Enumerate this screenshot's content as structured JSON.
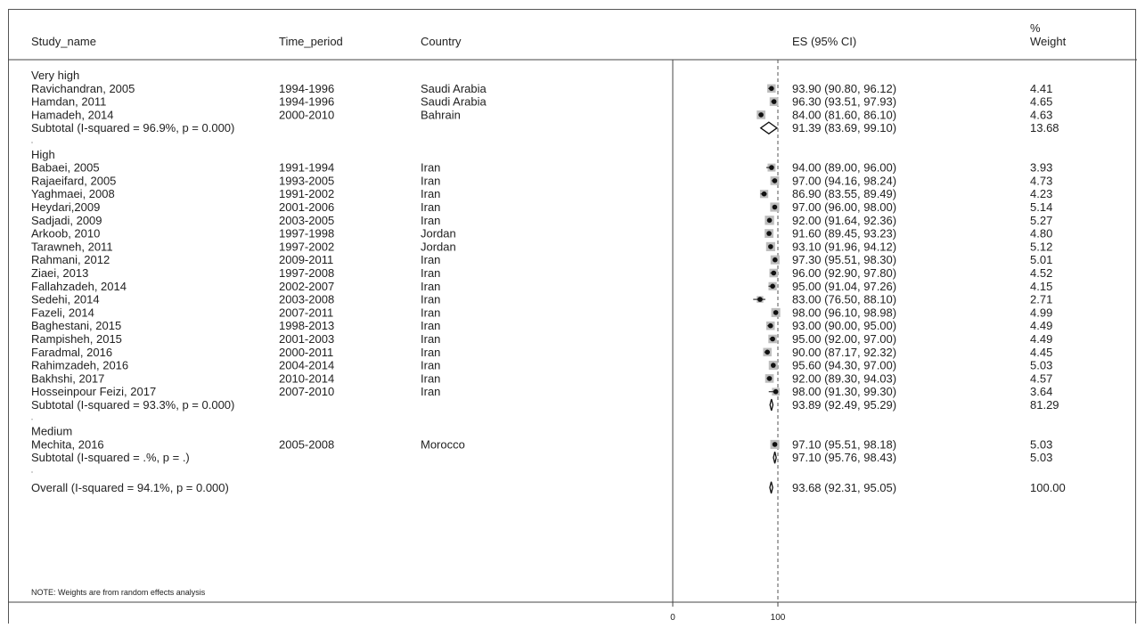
{
  "chart_data": {
    "type": "forest",
    "columns": {
      "study": "Study_name",
      "period": "Time_period",
      "country": "Country",
      "es": "ES (95% CI)",
      "weight_top": "%",
      "weight_bottom": "Weight"
    },
    "axis": {
      "ticks": [
        0,
        100
      ],
      "tick_labels": [
        "0",
        "100"
      ],
      "xlim": [
        0,
        100
      ],
      "reference_line": 100
    },
    "note": "NOTE: Weights are from random effects analysis",
    "groups": [
      {
        "name": "Very high",
        "studies": [
          {
            "study": "Ravichandran, 2005",
            "period": "1994-1996",
            "country": "Saudi Arabia",
            "es": 93.9,
            "lo": 90.8,
            "hi": 96.12,
            "es_text": "93.90 (90.80, 96.12)",
            "weight": "4.41"
          },
          {
            "study": "Hamdan, 2011",
            "period": "1994-1996",
            "country": "Saudi Arabia",
            "es": 96.3,
            "lo": 93.51,
            "hi": 97.93,
            "es_text": "96.30 (93.51, 97.93)",
            "weight": "4.65"
          },
          {
            "study": "Hamadeh, 2014",
            "period": "2000-2010",
            "country": "Bahrain",
            "es": 84.0,
            "lo": 81.6,
            "hi": 86.1,
            "es_text": "84.00 (81.60, 86.10)",
            "weight": "4.63"
          }
        ],
        "subtotal": {
          "label": "Subtotal  (I-squared = 96.9%, p = 0.000)",
          "es": 91.39,
          "lo": 83.69,
          "hi": 99.1,
          "es_text": "91.39 (83.69, 99.10)",
          "weight": "13.68"
        }
      },
      {
        "name": "High",
        "studies": [
          {
            "study": "Babaei, 2005",
            "period": "1991-1994",
            "country": "Iran",
            "es": 94.0,
            "lo": 89.0,
            "hi": 96.0,
            "es_text": "94.00 (89.00, 96.00)",
            "weight": "3.93"
          },
          {
            "study": "Rajaeifard, 2005",
            "period": "1993-2005",
            "country": "Iran",
            "es": 97.0,
            "lo": 94.16,
            "hi": 98.24,
            "es_text": "97.00 (94.16, 98.24)",
            "weight": "4.73"
          },
          {
            "study": "Yaghmaei, 2008",
            "period": "1991-2002",
            "country": "Iran",
            "es": 86.9,
            "lo": 83.55,
            "hi": 89.49,
            "es_text": "86.90 (83.55, 89.49)",
            "weight": "4.23"
          },
          {
            "study": "Heydari,2009",
            "period": "2001-2006",
            "country": "Iran",
            "es": 97.0,
            "lo": 96.0,
            "hi": 98.0,
            "es_text": "97.00 (96.00, 98.00)",
            "weight": "5.14"
          },
          {
            "study": "Sadjadi, 2009",
            "period": "2003-2005",
            "country": "Iran",
            "es": 92.0,
            "lo": 91.64,
            "hi": 92.36,
            "es_text": "92.00 (91.64, 92.36)",
            "weight": "5.27"
          },
          {
            "study": "Arkoob, 2010",
            "period": "1997-1998",
            "country": "Jordan",
            "es": 91.6,
            "lo": 89.45,
            "hi": 93.23,
            "es_text": "91.60 (89.45, 93.23)",
            "weight": "4.80"
          },
          {
            "study": "Tarawneh, 2011",
            "period": "1997-2002",
            "country": "Jordan",
            "es": 93.1,
            "lo": 91.96,
            "hi": 94.12,
            "es_text": "93.10 (91.96, 94.12)",
            "weight": "5.12"
          },
          {
            "study": "Rahmani, 2012",
            "period": "2009-2011",
            "country": "Iran",
            "es": 97.3,
            "lo": 95.51,
            "hi": 98.3,
            "es_text": "97.30 (95.51, 98.30)",
            "weight": "5.01"
          },
          {
            "study": "Ziaei, 2013",
            "period": "1997-2008",
            "country": "Iran",
            "es": 96.0,
            "lo": 92.9,
            "hi": 97.8,
            "es_text": "96.00 (92.90, 97.80)",
            "weight": "4.52"
          },
          {
            "study": "Fallahzadeh, 2014",
            "period": "2002-2007",
            "country": "Iran",
            "es": 95.0,
            "lo": 91.04,
            "hi": 97.26,
            "es_text": "95.00 (91.04, 97.26)",
            "weight": "4.15"
          },
          {
            "study": "Sedehi, 2014",
            "period": "2003-2008",
            "country": "Iran",
            "es": 83.0,
            "lo": 76.5,
            "hi": 88.1,
            "es_text": "83.00 (76.50, 88.10)",
            "weight": "2.71"
          },
          {
            "study": "Fazeli, 2014",
            "period": "2007-2011",
            "country": "Iran",
            "es": 98.0,
            "lo": 96.1,
            "hi": 98.98,
            "es_text": "98.00 (96.10, 98.98)",
            "weight": "4.99"
          },
          {
            "study": "Baghestani, 2015",
            "period": "1998-2013",
            "country": "Iran",
            "es": 93.0,
            "lo": 90.0,
            "hi": 95.0,
            "es_text": "93.00 (90.00, 95.00)",
            "weight": "4.49"
          },
          {
            "study": "Rampisheh, 2015",
            "period": "2001-2003",
            "country": "Iran",
            "es": 95.0,
            "lo": 92.0,
            "hi": 97.0,
            "es_text": "95.00 (92.00, 97.00)",
            "weight": "4.49"
          },
          {
            "study": "Faradmal, 2016",
            "period": "2000-2011",
            "country": "Iran",
            "es": 90.0,
            "lo": 87.17,
            "hi": 92.32,
            "es_text": "90.00 (87.17, 92.32)",
            "weight": "4.45"
          },
          {
            "study": "Rahimzadeh, 2016",
            "period": "2004-2014",
            "country": "Iran",
            "es": 95.6,
            "lo": 94.3,
            "hi": 97.0,
            "es_text": "95.60 (94.30, 97.00)",
            "weight": "5.03"
          },
          {
            "study": "Bakhshi, 2017",
            "period": "2010-2014",
            "country": "Iran",
            "es": 92.0,
            "lo": 89.3,
            "hi": 94.03,
            "es_text": "92.00 (89.30, 94.03)",
            "weight": "4.57"
          },
          {
            "study": "Hosseinpour Feizi, 2017",
            "period": "2007-2010",
            "country": "Iran",
            "es": 98.0,
            "lo": 91.3,
            "hi": 99.3,
            "es_text": "98.00 (91.30, 99.30)",
            "weight": "3.64"
          }
        ],
        "subtotal": {
          "label": "Subtotal  (I-squared = 93.3%, p = 0.000)",
          "es": 93.89,
          "lo": 92.49,
          "hi": 95.29,
          "es_text": "93.89 (92.49, 95.29)",
          "weight": "81.29"
        }
      },
      {
        "name": "Medium",
        "studies": [
          {
            "study": "Mechita, 2016",
            "period": "2005-2008",
            "country": "Morocco",
            "es": 97.1,
            "lo": 95.51,
            "hi": 98.18,
            "es_text": "97.10 (95.51, 98.18)",
            "weight": "5.03"
          }
        ],
        "subtotal": {
          "label": "Subtotal  (I-squared = .%, p = .)",
          "es": 97.1,
          "lo": 95.76,
          "hi": 98.43,
          "es_text": "97.10 (95.76, 98.43)",
          "weight": "5.03"
        }
      }
    ],
    "overall": {
      "label": "Overall  (I-squared = 94.1%, p = 0.000)",
      "es": 93.68,
      "lo": 92.31,
      "hi": 95.05,
      "es_text": "93.68 (92.31, 95.05)",
      "weight": "100.00"
    },
    "colors": {
      "box": "#bdbdbd",
      "marker": "#111111",
      "line": "#333333",
      "reference": "#555555"
    }
  }
}
